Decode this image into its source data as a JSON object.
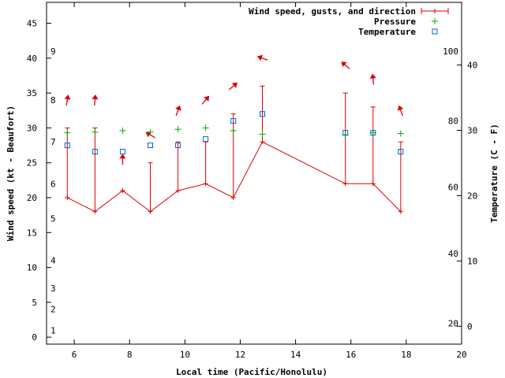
{
  "chart_data": {
    "type": "line",
    "xlabel": "Local time (Pacific/Honolulu)",
    "ylabel": "Wind speed (kt - Beaufort)",
    "y2label": "Temperature (C - F)",
    "xlim": [
      5,
      20
    ],
    "ylim": [
      -1,
      48
    ],
    "x_ticks": [
      6,
      8,
      10,
      12,
      14,
      16,
      18,
      20
    ],
    "y_ticks": [
      0,
      5,
      10,
      15,
      20,
      25,
      30,
      35,
      40,
      45
    ],
    "beaufort_scale": [
      {
        "label": "1",
        "y": 1
      },
      {
        "label": "2",
        "y": 4
      },
      {
        "label": "3",
        "y": 7
      },
      {
        "label": "4",
        "y": 11
      },
      {
        "label": "5",
        "y": 17
      },
      {
        "label": "6",
        "y": 22
      },
      {
        "label": "7",
        "y": 28
      },
      {
        "label": "8",
        "y": 34
      },
      {
        "label": "9",
        "y": 41
      }
    ],
    "celsius_axis": {
      "ticks": [
        -10,
        0,
        10,
        20,
        30,
        40
      ],
      "yline": [
        -7.8,
        43.7
      ],
      "cline": [
        -10,
        45
      ]
    },
    "fahrenheit_labels": [
      {
        "label": "20",
        "y": 2
      },
      {
        "label": "40",
        "y": 12
      },
      {
        "label": "60",
        "y": 21.5
      },
      {
        "label": "80",
        "y": 31
      },
      {
        "label": "100",
        "y": 41
      }
    ],
    "legend": [
      {
        "label": "Wind speed, gusts, and direction",
        "key": "wind"
      },
      {
        "label": "Pressure",
        "key": "pressure"
      },
      {
        "label": "Temperature",
        "key": "temperature"
      }
    ],
    "series": [
      {
        "name": "Wind speed, gusts, and direction",
        "color": "#dd0000",
        "x": [
          5.75,
          6.75,
          7.75,
          8.75,
          9.75,
          10.75,
          11.75,
          12.8,
          15.8,
          16.8,
          17.8
        ],
        "wind": [
          20,
          18,
          21,
          18,
          21,
          22,
          20,
          28,
          22,
          22,
          18
        ],
        "gusts": [
          30,
          30,
          21,
          25,
          28,
          28,
          32,
          36,
          35,
          33,
          28
        ],
        "direction_y": [
          34,
          34,
          25.5,
          29,
          32.5,
          34,
          36,
          40,
          39,
          37,
          32.5
        ],
        "direction_deg": [
          10,
          5,
          0,
          300,
          20,
          40,
          50,
          290,
          310,
          355,
          340
        ]
      },
      {
        "name": "Pressure",
        "color": "#00aa00",
        "x": [
          5.75,
          6.75,
          7.75,
          8.75,
          9.75,
          10.75,
          11.75,
          12.8,
          15.8,
          16.8,
          17.8
        ],
        "values": [
          29.3,
          29.4,
          29.6,
          29.4,
          29.8,
          30.0,
          29.6,
          29.1,
          29.0,
          29.3,
          29.2
        ]
      },
      {
        "name": "Temperature",
        "color": "#0066cc",
        "x": [
          5.75,
          6.75,
          7.75,
          8.75,
          9.75,
          10.75,
          11.75,
          12.8,
          15.8,
          16.8,
          17.8
        ],
        "values": [
          27.5,
          26.6,
          26.6,
          27.5,
          27.5,
          28.4,
          31.0,
          32.0,
          29.3,
          29.3,
          26.6
        ]
      }
    ]
  }
}
